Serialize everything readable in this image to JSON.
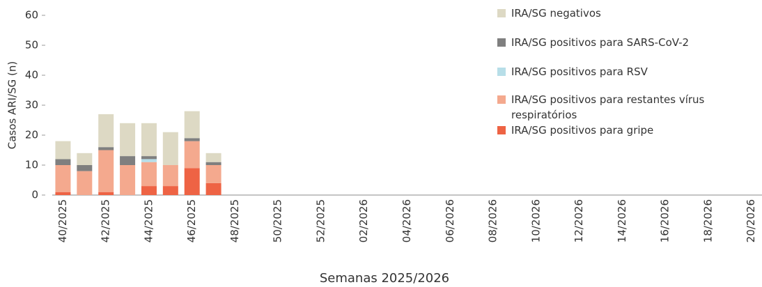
{
  "chart_data": {
    "type": "bar",
    "stacked": true,
    "y_label": "Casos ARI/SG (n)",
    "x_label": "Semanas 2025/2026",
    "categories": [
      "40/2025",
      null,
      "42/2025",
      null,
      "44/2025",
      null,
      "46/2025",
      null,
      "48/2025",
      null,
      "50/2025",
      null,
      "52/2025",
      null,
      "02/2026",
      null,
      "04/2026",
      null,
      "06/2026",
      null,
      "08/2026",
      null,
      "10/2026",
      null,
      "12/2026",
      null,
      "14/2026",
      null,
      "16/2026",
      null,
      "18/2026",
      null,
      "20/2026"
    ],
    "series": [
      {
        "name": "IRA/SG positivos para gripe",
        "color": "#ee6344",
        "values": [
          1,
          0,
          1,
          0,
          3,
          3,
          9,
          4,
          0,
          0,
          0,
          0,
          0,
          0,
          0,
          0,
          0,
          0,
          0,
          0,
          0,
          0,
          0,
          0,
          0,
          0,
          0,
          0,
          0,
          0,
          0,
          0,
          0
        ]
      },
      {
        "name": "IRA/SG positivos para restantes vírus respiratórios",
        "color": "#f4a98e",
        "values": [
          9,
          8,
          14,
          10,
          8,
          7,
          9,
          6,
          0,
          0,
          0,
          0,
          0,
          0,
          0,
          0,
          0,
          0,
          0,
          0,
          0,
          0,
          0,
          0,
          0,
          0,
          0,
          0,
          0,
          0,
          0,
          0,
          0
        ]
      },
      {
        "name": "IRA/SG positivos para RSV",
        "color": "#b7dee8",
        "values": [
          0,
          0,
          0,
          0,
          1,
          0,
          0,
          0,
          0,
          0,
          0,
          0,
          0,
          0,
          0,
          0,
          0,
          0,
          0,
          0,
          0,
          0,
          0,
          0,
          0,
          0,
          0,
          0,
          0,
          0,
          0,
          0,
          0
        ]
      },
      {
        "name": "IRA/SG positivos para SARS-CoV-2",
        "color": "#7f7f7f",
        "values": [
          2,
          2,
          1,
          3,
          1,
          0,
          1,
          1,
          0,
          0,
          0,
          0,
          0,
          0,
          0,
          0,
          0,
          0,
          0,
          0,
          0,
          0,
          0,
          0,
          0,
          0,
          0,
          0,
          0,
          0,
          0,
          0,
          0
        ]
      },
      {
        "name": "IRA/SG negativos",
        "color": "#ddd9c4",
        "values": [
          6,
          4,
          11,
          11,
          11,
          11,
          9,
          3,
          0,
          0,
          0,
          0,
          0,
          0,
          0,
          0,
          0,
          0,
          0,
          0,
          0,
          0,
          0,
          0,
          0,
          0,
          0,
          0,
          0,
          0,
          0,
          0,
          0
        ]
      }
    ],
    "ylim": [
      0,
      60
    ],
    "yticks": [
      0,
      10,
      20,
      30,
      40,
      50,
      60
    ]
  }
}
